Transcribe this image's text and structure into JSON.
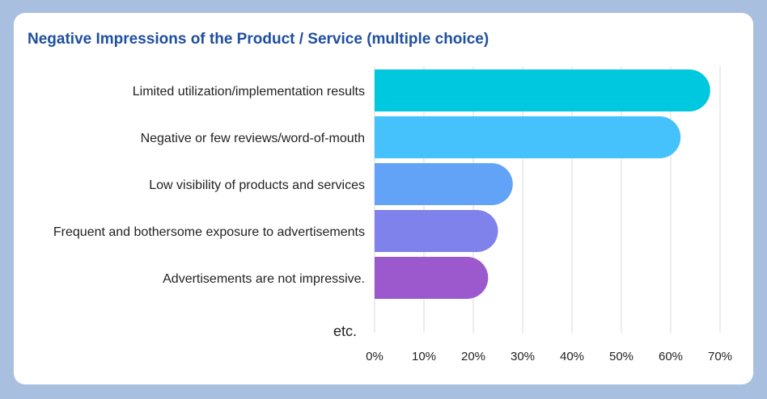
{
  "chart_data": {
    "type": "bar",
    "orientation": "horizontal",
    "title": "Negative Impressions of the Product / Service (multiple choice)",
    "categories": [
      "Limited utilization/implementation results",
      "Negative or few reviews/word-of-mouth",
      "Low visibility of products and services",
      "Frequent and bothersome exposure to advertisements",
      "Advertisements are not impressive."
    ],
    "values": [
      68,
      62,
      28,
      25,
      23
    ],
    "extra_category": "etc.",
    "xlim": [
      0,
      70
    ],
    "x_ticks": [
      "0%",
      "10%",
      "20%",
      "30%",
      "40%",
      "50%",
      "60%",
      "70%"
    ],
    "grid": true,
    "bar_colors": [
      "#00c8df",
      "#45c2fb",
      "#62a3f8",
      "#7e82ea",
      "#9b59cd"
    ]
  }
}
